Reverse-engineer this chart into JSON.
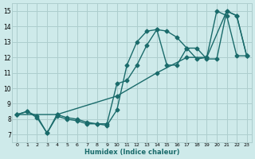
{
  "xlabel": "Humidex (Indice chaleur)",
  "xlim": [
    -0.5,
    23.5
  ],
  "ylim": [
    6.5,
    15.5
  ],
  "xticks": [
    0,
    1,
    2,
    3,
    4,
    5,
    6,
    7,
    8,
    9,
    10,
    11,
    12,
    13,
    14,
    15,
    16,
    17,
    18,
    19,
    20,
    21,
    22,
    23
  ],
  "yticks": [
    7,
    8,
    9,
    10,
    11,
    12,
    13,
    14,
    15
  ],
  "background_color": "#ceeaea",
  "grid_color": "#aecece",
  "line_color": "#1a6b6b",
  "line1_x": [
    0,
    1,
    2,
    3,
    4,
    5,
    6,
    7,
    8,
    9,
    10,
    11,
    12,
    13,
    14,
    15,
    16,
    17,
    18,
    19,
    20,
    21,
    22,
    23
  ],
  "line1_y": [
    8.3,
    8.5,
    8.1,
    7.1,
    8.2,
    8.0,
    7.9,
    7.7,
    7.7,
    7.6,
    8.6,
    11.5,
    13.0,
    13.7,
    13.8,
    11.5,
    11.5,
    12.6,
    11.9,
    12.0,
    15.0,
    14.7,
    12.1,
    12.1
  ],
  "line2_x": [
    0,
    1,
    2,
    3,
    4,
    5,
    6,
    7,
    8,
    9,
    10,
    11,
    12,
    13,
    14,
    15,
    16,
    17,
    18,
    19,
    20,
    21,
    22,
    23
  ],
  "line2_y": [
    8.3,
    8.5,
    8.2,
    7.1,
    8.3,
    8.1,
    8.0,
    7.8,
    7.7,
    7.7,
    10.3,
    10.5,
    11.5,
    12.8,
    13.8,
    13.7,
    13.3,
    12.6,
    12.6,
    11.9,
    11.9,
    15.0,
    14.7,
    12.1
  ],
  "line3_x": [
    0,
    4,
    10,
    14,
    17,
    19,
    21,
    22,
    23
  ],
  "line3_y": [
    8.3,
    8.3,
    9.5,
    11.0,
    12.0,
    12.0,
    15.0,
    14.7,
    12.1
  ],
  "marker": "D",
  "markersize": 2.5,
  "linewidth": 1.0
}
